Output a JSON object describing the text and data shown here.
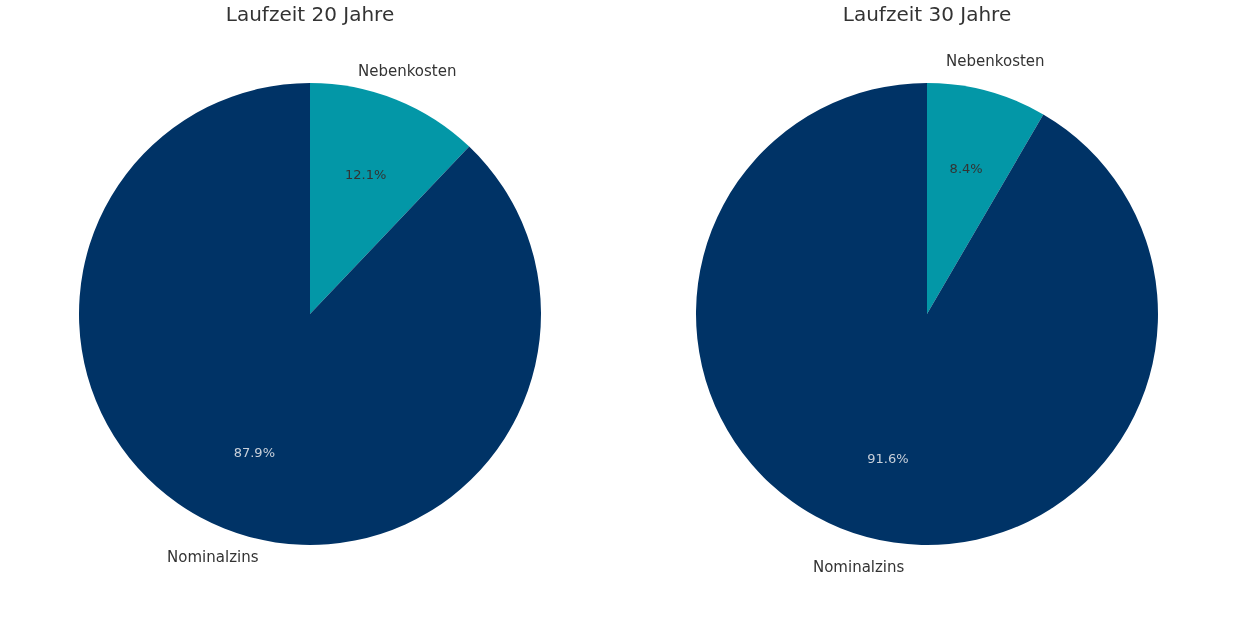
{
  "chart_data": [
    {
      "type": "pie",
      "title": "Laufzeit 20 Jahre",
      "categories": [
        "Nebenkosten",
        "Nominalzins"
      ],
      "values": [
        12.1,
        87.9
      ],
      "colors": [
        "#0397a7",
        "#003366"
      ],
      "value_labels": [
        "12.1%",
        "87.9%"
      ],
      "legend": false
    },
    {
      "type": "pie",
      "title": "Laufzeit 30 Jahre",
      "categories": [
        "Nebenkosten",
        "Nominalzins"
      ],
      "values": [
        8.4,
        91.6
      ],
      "colors": [
        "#0397a7",
        "#003366"
      ],
      "value_labels": [
        "8.4%",
        "91.6%"
      ],
      "legend": false
    }
  ]
}
